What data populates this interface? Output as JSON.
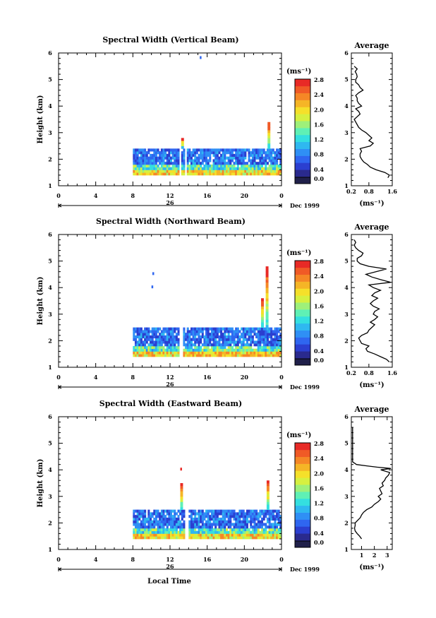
{
  "units_label": "(ms⁻¹)",
  "x_axis": {
    "label": "Local Time",
    "ticks": [
      "0",
      "4",
      "8",
      "12",
      "16",
      "20",
      "0"
    ],
    "day_label": "26",
    "month_label": "Dec 1999",
    "range_hours": [
      0,
      24
    ]
  },
  "y_axis": {
    "label": "Height (km)",
    "ticks": [
      "1",
      "2",
      "3",
      "4",
      "5",
      "6"
    ],
    "range_km": [
      1,
      6
    ]
  },
  "colorbar": {
    "min": 0.0,
    "max": 2.8,
    "colors": [
      "#20204a",
      "#2a2a8e",
      "#2b3fd0",
      "#2f66f0",
      "#2f8ff5",
      "#2fb8f0",
      "#34dfe0",
      "#5ff0b5",
      "#9ef07a",
      "#d6f040",
      "#f5e02a",
      "#f5b526",
      "#f58726",
      "#f05a26",
      "#e82a26"
    ]
  },
  "panels": [
    {
      "title": "Spectral Width (Vertical Beam)",
      "colorbar_ticks": [
        "2.8",
        "2.4",
        "2.0",
        "1.6",
        "1.2",
        "0.8",
        "0.4",
        "0.0"
      ],
      "avg_title": "Average",
      "avg_ticks": [
        "0.2",
        "0.8",
        "1.6"
      ],
      "avg_xlim": [
        0.2,
        1.6
      ],
      "avg_xticks": [
        0.2,
        0.8,
        1.6
      ],
      "avg_unit": "(ms⁻¹)",
      "data_extent": {
        "t_start": 8.0,
        "t_end": 24.0,
        "h_bottom": 1.4,
        "h_top": 2.4
      },
      "gap_hours": [
        [
          12.9,
          13.1
        ],
        [
          13.4,
          13.6
        ]
      ],
      "spikes": [
        {
          "t": 13.2,
          "h_top": 2.75
        },
        {
          "t": 22.5,
          "h_top": 3.4
        }
      ],
      "isolated_points": [
        {
          "t": 15.2,
          "h": 5.8
        }
      ],
      "average_profile": [
        [
          1.3,
          1.45
        ],
        [
          1.4,
          1.5
        ],
        [
          1.5,
          1.35
        ],
        [
          1.6,
          1.05
        ],
        [
          1.7,
          0.85
        ],
        [
          1.8,
          0.75
        ],
        [
          1.9,
          0.62
        ],
        [
          2.0,
          0.55
        ],
        [
          2.1,
          0.5
        ],
        [
          2.2,
          0.5
        ],
        [
          2.3,
          0.55
        ],
        [
          2.4,
          0.5
        ],
        [
          2.5,
          0.85
        ],
        [
          2.6,
          0.95
        ],
        [
          2.7,
          0.8
        ],
        [
          2.8,
          0.9
        ],
        [
          2.9,
          0.8
        ],
        [
          3.0,
          0.7
        ],
        [
          3.1,
          0.55
        ],
        [
          3.2,
          0.45
        ],
        [
          3.3,
          0.4
        ],
        [
          3.4,
          0.35
        ],
        [
          3.5,
          0.3
        ],
        [
          3.6,
          0.4
        ],
        [
          3.7,
          0.5
        ],
        [
          3.8,
          0.45
        ],
        [
          3.9,
          0.35
        ],
        [
          4.0,
          0.55
        ],
        [
          4.1,
          0.45
        ],
        [
          4.2,
          0.4
        ],
        [
          4.3,
          0.4
        ],
        [
          4.4,
          0.35
        ],
        [
          4.5,
          0.45
        ],
        [
          4.6,
          0.6
        ],
        [
          4.7,
          0.5
        ],
        [
          4.8,
          0.45
        ],
        [
          4.9,
          0.35
        ],
        [
          5.0,
          0.35
        ],
        [
          5.1,
          0.4
        ],
        [
          5.2,
          0.38
        ],
        [
          5.3,
          0.33
        ],
        [
          5.4,
          0.4
        ],
        [
          5.5,
          0.3
        ]
      ]
    },
    {
      "title": "Spectral Width (Northward Beam)",
      "colorbar_ticks": [
        "2.8",
        "2.4",
        "2.0",
        "1.6",
        "1.2",
        "0.8",
        "0.4",
        "0.0"
      ],
      "avg_title": "Average",
      "avg_ticks": [
        "0.2",
        "0.8",
        "1.6"
      ],
      "avg_xlim": [
        0.2,
        1.6
      ],
      "avg_xticks": [
        0.2,
        0.8,
        1.6
      ],
      "avg_unit": "(ms⁻¹)",
      "data_extent": {
        "t_start": 8.0,
        "t_end": 24.0,
        "h_bottom": 1.4,
        "h_top": 2.5
      },
      "gap_hours": [
        [
          12.9,
          13.3
        ]
      ],
      "spikes": [
        {
          "t": 21.8,
          "h_top": 3.6
        },
        {
          "t": 22.3,
          "h_top": 4.7
        }
      ],
      "isolated_points": [
        {
          "t": 10.1,
          "h": 4.5
        },
        {
          "t": 10.0,
          "h": 4.0
        }
      ],
      "average_profile": [
        [
          1.2,
          1.5
        ],
        [
          1.3,
          1.4
        ],
        [
          1.4,
          1.2
        ],
        [
          1.5,
          1.0
        ],
        [
          1.6,
          0.75
        ],
        [
          1.7,
          0.7
        ],
        [
          1.8,
          0.8
        ],
        [
          1.9,
          0.55
        ],
        [
          2.0,
          0.5
        ],
        [
          2.1,
          0.45
        ],
        [
          2.2,
          0.55
        ],
        [
          2.3,
          0.75
        ],
        [
          2.4,
          0.8
        ],
        [
          2.5,
          0.9
        ],
        [
          2.6,
          1.0
        ],
        [
          2.7,
          0.85
        ],
        [
          2.8,
          1.0
        ],
        [
          2.9,
          1.1
        ],
        [
          3.0,
          0.95
        ],
        [
          3.1,
          1.0
        ],
        [
          3.2,
          1.15
        ],
        [
          3.3,
          0.95
        ],
        [
          3.4,
          0.85
        ],
        [
          3.5,
          0.95
        ],
        [
          3.6,
          1.1
        ],
        [
          3.7,
          0.9
        ],
        [
          3.8,
          1.0
        ],
        [
          3.9,
          1.2
        ],
        [
          4.0,
          0.95
        ],
        [
          4.1,
          0.8
        ],
        [
          4.2,
          1.55
        ],
        [
          4.3,
          1.2
        ],
        [
          4.4,
          0.9
        ],
        [
          4.5,
          0.7
        ],
        [
          4.6,
          1.05
        ],
        [
          4.7,
          1.4
        ],
        [
          4.8,
          0.8
        ],
        [
          4.9,
          0.5
        ],
        [
          5.0,
          0.4
        ],
        [
          5.1,
          0.4
        ],
        [
          5.2,
          0.55
        ],
        [
          5.3,
          0.6
        ],
        [
          5.4,
          0.45
        ],
        [
          5.5,
          0.35
        ],
        [
          5.6,
          0.3
        ],
        [
          5.7,
          0.35
        ],
        [
          5.8,
          0.3
        ]
      ]
    },
    {
      "title": "Spectral Width (Eastward Beam)",
      "colorbar_ticks": [
        "2.8",
        "2.4",
        "2.0",
        "1.6",
        "1.2",
        "0.8",
        "0.4",
        "0.0"
      ],
      "avg_title": "Average",
      "avg_ticks": [
        "1",
        "2",
        "3"
      ],
      "avg_xlim": [
        0.2,
        3.4
      ],
      "avg_xticks": [
        1,
        2,
        3
      ],
      "avg_unit": "(ms⁻¹)",
      "data_extent": {
        "t_start": 8.0,
        "t_end": 24.0,
        "h_bottom": 1.4,
        "h_top": 2.5
      },
      "gap_hours": [
        [
          13.4,
          13.8
        ]
      ],
      "spikes": [
        {
          "t": 13.1,
          "h_top": 3.5
        },
        {
          "t": 22.4,
          "h_top": 3.6
        }
      ],
      "isolated_points": [
        {
          "t": 13.1,
          "h": 4.0
        }
      ],
      "average_profile": [
        [
          1.4,
          1.0
        ],
        [
          1.5,
          0.85
        ],
        [
          1.6,
          0.65
        ],
        [
          1.7,
          0.5
        ],
        [
          1.8,
          0.45
        ],
        [
          1.9,
          0.5
        ],
        [
          2.0,
          0.5
        ],
        [
          2.1,
          0.7
        ],
        [
          2.2,
          0.9
        ],
        [
          2.3,
          1.0
        ],
        [
          2.4,
          1.15
        ],
        [
          2.5,
          1.4
        ],
        [
          2.6,
          1.8
        ],
        [
          2.7,
          2.0
        ],
        [
          2.8,
          2.3
        ],
        [
          2.9,
          2.5
        ],
        [
          3.0,
          2.3
        ],
        [
          3.1,
          2.6
        ],
        [
          3.2,
          2.5
        ],
        [
          3.3,
          2.4
        ],
        [
          3.4,
          2.7
        ],
        [
          3.5,
          2.6
        ],
        [
          3.6,
          2.8
        ],
        [
          3.7,
          2.9
        ],
        [
          3.8,
          3.1
        ],
        [
          3.9,
          3.2
        ],
        [
          4.0,
          2.5
        ],
        [
          4.05,
          3.3
        ],
        [
          4.1,
          2.2
        ],
        [
          4.15,
          1.4
        ],
        [
          4.2,
          0.6
        ],
        [
          4.3,
          0.3
        ],
        [
          5.6,
          0.3
        ]
      ]
    }
  ],
  "chart_data": [
    {
      "type": "heatmap",
      "title": "Spectral Width (Vertical Beam)",
      "xlabel": "Local Time",
      "ylabel": "Height (km)",
      "xlim": [
        0,
        24
      ],
      "ylim": [
        1,
        6
      ],
      "colorbar_range": [
        0.0,
        2.8
      ]
    },
    {
      "type": "heatmap",
      "title": "Spectral Width (Northward Beam)",
      "xlabel": "Local Time",
      "ylabel": "Height (km)",
      "xlim": [
        0,
        24
      ],
      "ylim": [
        1,
        6
      ],
      "colorbar_range": [
        0.0,
        2.8
      ]
    },
    {
      "type": "heatmap",
      "title": "Spectral Width (Eastward Beam)",
      "xlabel": "Local Time",
      "ylabel": "Height (km)",
      "xlim": [
        0,
        24
      ],
      "ylim": [
        1,
        6
      ],
      "colorbar_range": [
        0.0,
        2.8
      ]
    }
  ]
}
